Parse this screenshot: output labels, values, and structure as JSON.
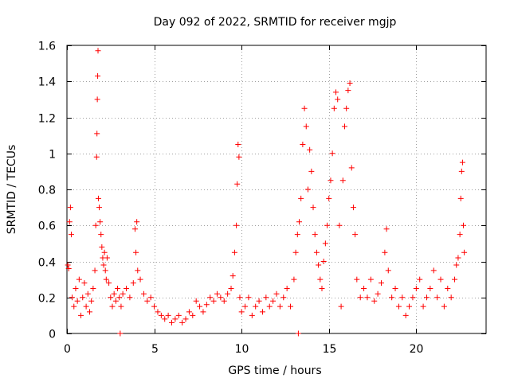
{
  "chart_data": {
    "type": "scatter",
    "title": "Day 092 of 2022, SRMTID for receiver mgjp",
    "xlabel": "GPS time / hours",
    "ylabel": "SRMTID / TECUs",
    "xlim": [
      0,
      24
    ],
    "ylim": [
      0,
      1.6
    ],
    "xticks": [
      0,
      5,
      10,
      15,
      20
    ],
    "xtick_labels": [
      "0",
      "5",
      "10",
      "15",
      "20"
    ],
    "yticks": [
      0,
      0.2,
      0.4,
      0.6,
      0.8,
      1.0,
      1.2,
      1.4,
      1.6
    ],
    "ytick_labels": [
      "0",
      "0.2",
      "0.4",
      "0.6",
      "0.8",
      "1",
      "1.2",
      "1.4",
      "1.6"
    ],
    "grid": true,
    "marker": "+",
    "marker_color": "#ff0000",
    "series": [
      {
        "name": "SRMTID",
        "points": [
          [
            0.05,
            0.38
          ],
          [
            0.1,
            0.36
          ],
          [
            0.15,
            0.62
          ],
          [
            0.2,
            0.7
          ],
          [
            0.25,
            0.55
          ],
          [
            0.3,
            0.2
          ],
          [
            0.4,
            0.15
          ],
          [
            0.5,
            0.25
          ],
          [
            0.6,
            0.18
          ],
          [
            0.7,
            0.3
          ],
          [
            0.8,
            0.1
          ],
          [
            0.9,
            0.2
          ],
          [
            1.0,
            0.28
          ],
          [
            1.1,
            0.15
          ],
          [
            1.2,
            0.22
          ],
          [
            1.3,
            0.12
          ],
          [
            1.4,
            0.18
          ],
          [
            1.5,
            0.25
          ],
          [
            1.6,
            0.35
          ],
          [
            1.65,
            0.6
          ],
          [
            1.7,
            0.98
          ],
          [
            1.72,
            1.11
          ],
          [
            1.74,
            1.3
          ],
          [
            1.76,
            1.43
          ],
          [
            1.78,
            1.57
          ],
          [
            1.8,
            0.75
          ],
          [
            1.85,
            0.7
          ],
          [
            1.9,
            0.62
          ],
          [
            1.95,
            0.55
          ],
          [
            2.0,
            0.48
          ],
          [
            2.05,
            0.42
          ],
          [
            2.1,
            0.38
          ],
          [
            2.15,
            0.45
          ],
          [
            2.2,
            0.35
          ],
          [
            2.25,
            0.3
          ],
          [
            2.3,
            0.42
          ],
          [
            2.4,
            0.28
          ],
          [
            2.5,
            0.2
          ],
          [
            2.6,
            0.15
          ],
          [
            2.7,
            0.22
          ],
          [
            2.8,
            0.18
          ],
          [
            2.9,
            0.25
          ],
          [
            3.0,
            0.2
          ],
          [
            3.05,
            0.0
          ],
          [
            3.1,
            0.15
          ],
          [
            3.2,
            0.22
          ],
          [
            3.4,
            0.25
          ],
          [
            3.6,
            0.2
          ],
          [
            3.8,
            0.28
          ],
          [
            3.9,
            0.58
          ],
          [
            3.95,
            0.45
          ],
          [
            4.0,
            0.62
          ],
          [
            4.05,
            0.35
          ],
          [
            4.2,
            0.3
          ],
          [
            4.4,
            0.22
          ],
          [
            4.6,
            0.18
          ],
          [
            4.8,
            0.2
          ],
          [
            5.0,
            0.15
          ],
          [
            5.2,
            0.12
          ],
          [
            5.4,
            0.1
          ],
          [
            5.6,
            0.08
          ],
          [
            5.8,
            0.1
          ],
          [
            6.0,
            0.06
          ],
          [
            6.2,
            0.08
          ],
          [
            6.4,
            0.1
          ],
          [
            6.6,
            0.06
          ],
          [
            6.8,
            0.08
          ],
          [
            7.0,
            0.12
          ],
          [
            7.2,
            0.1
          ],
          [
            7.4,
            0.18
          ],
          [
            7.6,
            0.15
          ],
          [
            7.8,
            0.12
          ],
          [
            8.0,
            0.16
          ],
          [
            8.2,
            0.2
          ],
          [
            8.4,
            0.18
          ],
          [
            8.6,
            0.22
          ],
          [
            8.8,
            0.2
          ],
          [
            9.0,
            0.18
          ],
          [
            9.2,
            0.22
          ],
          [
            9.4,
            0.25
          ],
          [
            9.5,
            0.32
          ],
          [
            9.6,
            0.45
          ],
          [
            9.7,
            0.6
          ],
          [
            9.75,
            0.83
          ],
          [
            9.8,
            1.05
          ],
          [
            9.85,
            0.98
          ],
          [
            9.9,
            0.2
          ],
          [
            10.0,
            0.12
          ],
          [
            10.2,
            0.15
          ],
          [
            10.4,
            0.2
          ],
          [
            10.6,
            0.1
          ],
          [
            10.8,
            0.15
          ],
          [
            11.0,
            0.18
          ],
          [
            11.2,
            0.12
          ],
          [
            11.4,
            0.2
          ],
          [
            11.6,
            0.15
          ],
          [
            11.8,
            0.18
          ],
          [
            12.0,
            0.22
          ],
          [
            12.2,
            0.15
          ],
          [
            12.4,
            0.2
          ],
          [
            12.6,
            0.25
          ],
          [
            12.8,
            0.15
          ],
          [
            13.0,
            0.3
          ],
          [
            13.1,
            0.45
          ],
          [
            13.2,
            0.55
          ],
          [
            13.25,
            0.0
          ],
          [
            13.3,
            0.62
          ],
          [
            13.4,
            0.75
          ],
          [
            13.5,
            1.05
          ],
          [
            13.6,
            1.25
          ],
          [
            13.7,
            1.15
          ],
          [
            13.8,
            0.8
          ],
          [
            13.9,
            1.02
          ],
          [
            14.0,
            0.9
          ],
          [
            14.1,
            0.7
          ],
          [
            14.2,
            0.55
          ],
          [
            14.3,
            0.45
          ],
          [
            14.4,
            0.38
          ],
          [
            14.5,
            0.3
          ],
          [
            14.6,
            0.25
          ],
          [
            14.7,
            0.4
          ],
          [
            14.8,
            0.5
          ],
          [
            14.9,
            0.6
          ],
          [
            15.0,
            0.75
          ],
          [
            15.1,
            0.85
          ],
          [
            15.2,
            1.0
          ],
          [
            15.3,
            1.25
          ],
          [
            15.4,
            1.34
          ],
          [
            15.5,
            1.3
          ],
          [
            15.6,
            0.6
          ],
          [
            15.7,
            0.15
          ],
          [
            15.8,
            0.85
          ],
          [
            15.9,
            1.15
          ],
          [
            16.0,
            1.25
          ],
          [
            16.1,
            1.35
          ],
          [
            16.2,
            1.39
          ],
          [
            16.3,
            0.92
          ],
          [
            16.4,
            0.7
          ],
          [
            16.5,
            0.55
          ],
          [
            16.6,
            0.3
          ],
          [
            16.8,
            0.2
          ],
          [
            17.0,
            0.25
          ],
          [
            17.2,
            0.2
          ],
          [
            17.4,
            0.3
          ],
          [
            17.6,
            0.18
          ],
          [
            17.8,
            0.22
          ],
          [
            18.0,
            0.28
          ],
          [
            18.2,
            0.45
          ],
          [
            18.3,
            0.58
          ],
          [
            18.4,
            0.35
          ],
          [
            18.6,
            0.2
          ],
          [
            18.8,
            0.25
          ],
          [
            19.0,
            0.15
          ],
          [
            19.2,
            0.2
          ],
          [
            19.4,
            0.1
          ],
          [
            19.6,
            0.15
          ],
          [
            19.8,
            0.2
          ],
          [
            20.0,
            0.25
          ],
          [
            20.2,
            0.3
          ],
          [
            20.4,
            0.15
          ],
          [
            20.6,
            0.2
          ],
          [
            20.8,
            0.25
          ],
          [
            21.0,
            0.35
          ],
          [
            21.2,
            0.2
          ],
          [
            21.4,
            0.3
          ],
          [
            21.6,
            0.15
          ],
          [
            21.8,
            0.25
          ],
          [
            22.0,
            0.2
          ],
          [
            22.2,
            0.3
          ],
          [
            22.3,
            0.38
          ],
          [
            22.4,
            0.42
          ],
          [
            22.5,
            0.55
          ],
          [
            22.55,
            0.75
          ],
          [
            22.6,
            0.9
          ],
          [
            22.65,
            0.95
          ],
          [
            22.7,
            0.6
          ],
          [
            22.75,
            0.45
          ]
        ]
      }
    ]
  }
}
